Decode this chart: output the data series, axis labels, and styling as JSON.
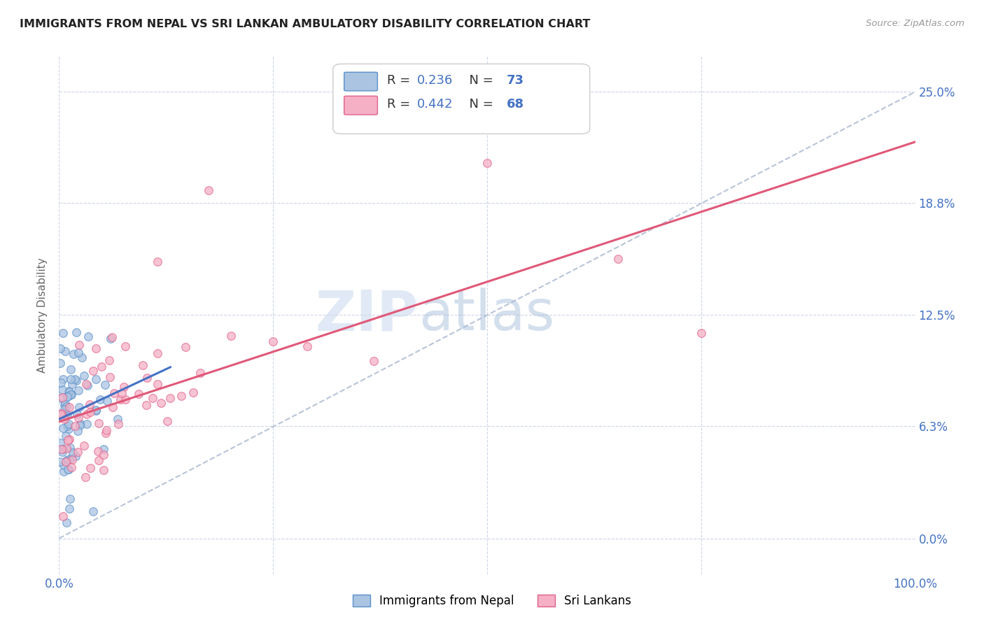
{
  "title": "IMMIGRANTS FROM NEPAL VS SRI LANKAN AMBULATORY DISABILITY CORRELATION CHART",
  "source": "Source: ZipAtlas.com",
  "ylabel": "Ambulatory Disability",
  "xlim": [
    0,
    1.0
  ],
  "ylim": [
    -0.02,
    0.27
  ],
  "yticks_right": [
    0.0,
    0.063,
    0.125,
    0.188,
    0.25
  ],
  "ytick_labels_right": [
    "0.0%",
    "6.3%",
    "12.5%",
    "18.8%",
    "25.0%"
  ],
  "nepal_color": "#aac4e2",
  "nepal_edge": "#5b8fc9",
  "srilanka_color": "#f5b0c5",
  "srilanka_edge": "#e0608a",
  "nepal_R": 0.236,
  "nepal_N": 73,
  "srilanka_R": 0.442,
  "srilanka_N": 68,
  "trend_blue_color": "#4472c4",
  "trend_pink_color": "#e05878",
  "trend_gray_color": "#b8c4d8",
  "watermark_zip": "ZIP",
  "watermark_atlas": "atlas",
  "background_color": "#ffffff",
  "grid_color": "#cdd5e8",
  "title_color": "#222222",
  "source_color": "#999999",
  "axis_label_color": "#666666",
  "tick_color": "#4472c4",
  "legend_R_color": "#333333",
  "legend_N_color": "#4472c4"
}
